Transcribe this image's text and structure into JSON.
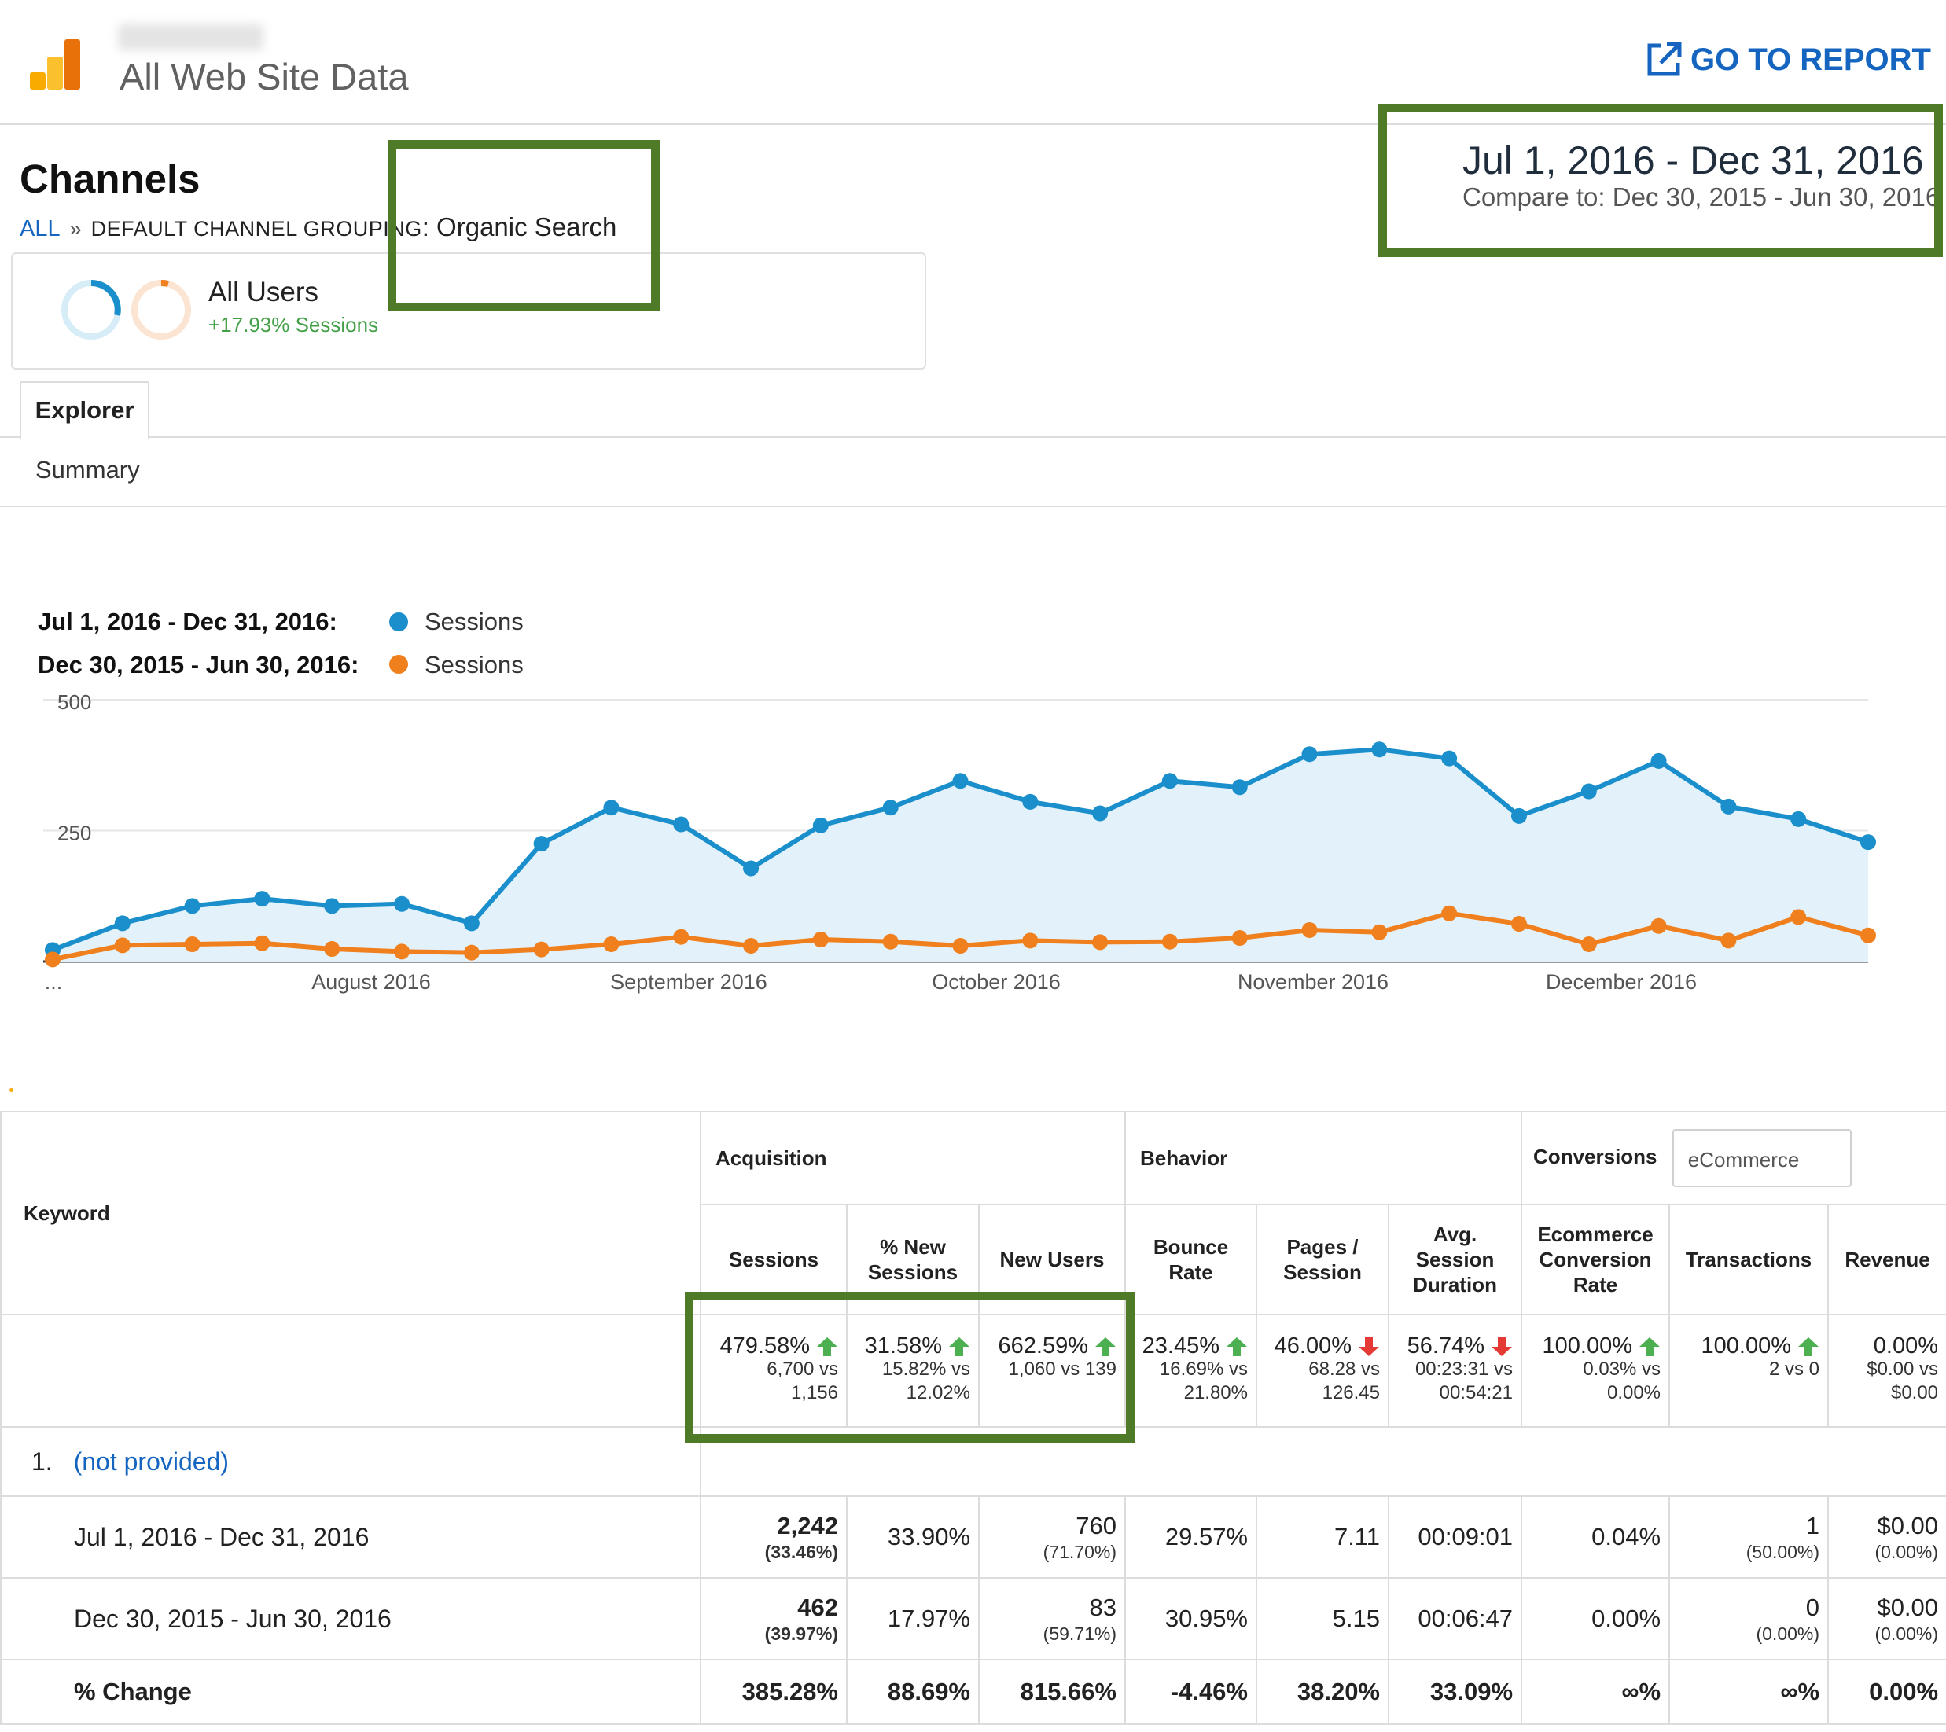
{
  "header": {
    "property_name": "All Web Site Data",
    "go_to_report_label": "GO TO REPORT"
  },
  "date_range": {
    "main": "Jul 1, 2016 - Dec 31, 2016",
    "compare": "Compare to: Dec 30, 2015 - Jun 30, 2016"
  },
  "page": {
    "title": "Channels",
    "breadcrumb": {
      "all": "ALL",
      "separator": "»",
      "group": "DEFAULT CHANNEL GROUPING",
      "value": ": Organic Search"
    }
  },
  "segment": {
    "name": "All Users",
    "change": "+17.93% Sessions"
  },
  "tabs": {
    "explorer": "Explorer",
    "summary": "Summary"
  },
  "legend": {
    "current_range": "Jul 1, 2016 - Dec 31, 2016:",
    "current_label": "Sessions",
    "previous_range": "Dec 30, 2015 - Jun 30, 2016:",
    "previous_label": "Sessions"
  },
  "colors": {
    "current": "#1a8fcb",
    "previous": "#f07f1e",
    "highlight": "#4f7a28",
    "up": "#4caf50",
    "down": "#e53935"
  },
  "chart_data": {
    "type": "line",
    "y_ticks": [
      "500",
      "250"
    ],
    "ylim": [
      0,
      500
    ],
    "x_tick_labels": [
      "...",
      "August 2016",
      "September 2016",
      "October 2016",
      "November 2016",
      "December 2016"
    ],
    "series": [
      {
        "name": "Sessions",
        "period": "Jul 1, 2016 - Dec 31, 2016",
        "values": [
          22,
          73,
          106,
          120,
          106,
          110,
          73,
          225,
          294,
          262,
          178,
          260,
          294,
          345,
          305,
          283,
          345,
          333,
          396,
          405,
          388,
          278,
          325,
          383,
          296,
          272,
          228
        ]
      },
      {
        "name": "Sessions",
        "period": "Dec 30, 2015 - Jun 30, 2016",
        "values": [
          4,
          31,
          33,
          35,
          24,
          19,
          17,
          23,
          33,
          47,
          30,
          42,
          38,
          30,
          40,
          37,
          38,
          45,
          60,
          56,
          92,
          72,
          33,
          68,
          40,
          85,
          50
        ]
      }
    ]
  },
  "table": {
    "keyword_header": "Keyword",
    "groups": {
      "acquisition": "Acquisition",
      "behavior": "Behavior",
      "conversions": "Conversions",
      "conversions_select": "eCommerce"
    },
    "columns": [
      "Sessions",
      "% New Sessions",
      "New Users",
      "Bounce Rate",
      "Pages / Session",
      "Avg. Session Duration",
      "Ecommerce Conversion Rate",
      "Transactions",
      "Revenue"
    ],
    "summary": [
      {
        "pct": "479.58%",
        "dir": "up",
        "line2": "6,700 vs",
        "line3": "1,156"
      },
      {
        "pct": "31.58%",
        "dir": "up",
        "line2": "15.82% vs",
        "line3": "12.02%"
      },
      {
        "pct": "662.59%",
        "dir": "up",
        "line2": "1,060 vs 139",
        "line3": ""
      },
      {
        "pct": "23.45%",
        "dir": "up",
        "line2": "16.69% vs",
        "line3": "21.80%"
      },
      {
        "pct": "46.00%",
        "dir": "down",
        "line2": "68.28 vs",
        "line3": "126.45"
      },
      {
        "pct": "56.74%",
        "dir": "down",
        "line2": "00:23:31 vs",
        "line3": "00:54:21"
      },
      {
        "pct": "100.00%",
        "dir": "up",
        "line2": "0.03% vs",
        "line3": "0.00%"
      },
      {
        "pct": "100.00%",
        "dir": "up",
        "line2": "2 vs 0",
        "line3": ""
      },
      {
        "pct": "0.00%",
        "dir": "none",
        "line2": "$0.00 vs",
        "line3": "$0.00"
      }
    ],
    "row1": {
      "index": "1.",
      "keyword": "(not provided)",
      "periods": [
        {
          "label": "Jul 1, 2016 - Dec 31, 2016",
          "cells": [
            {
              "v": "2,242",
              "s": "(33.46%)",
              "bold": true
            },
            {
              "v": "33.90%",
              "s": ""
            },
            {
              "v": "760",
              "s": "(71.70%)"
            },
            {
              "v": "29.57%",
              "s": ""
            },
            {
              "v": "7.11",
              "s": ""
            },
            {
              "v": "00:09:01",
              "s": ""
            },
            {
              "v": "0.04%",
              "s": ""
            },
            {
              "v": "1",
              "s": "(50.00%)"
            },
            {
              "v": "$0.00",
              "s": "(0.00%)"
            }
          ]
        },
        {
          "label": "Dec 30, 2015 - Jun 30, 2016",
          "cells": [
            {
              "v": "462",
              "s": "(39.97%)",
              "bold": true
            },
            {
              "v": "17.97%",
              "s": ""
            },
            {
              "v": "83",
              "s": "(59.71%)"
            },
            {
              "v": "30.95%",
              "s": ""
            },
            {
              "v": "5.15",
              "s": ""
            },
            {
              "v": "00:06:47",
              "s": ""
            },
            {
              "v": "0.00%",
              "s": ""
            },
            {
              "v": "0",
              "s": "(0.00%)"
            },
            {
              "v": "$0.00",
              "s": "(0.00%)"
            }
          ]
        }
      ],
      "change": {
        "label": "% Change",
        "cells": [
          "385.28%",
          "88.69%",
          "815.66%",
          "-4.46%",
          "38.20%",
          "33.09%",
          "∞%",
          "∞%",
          "0.00%"
        ]
      }
    }
  }
}
